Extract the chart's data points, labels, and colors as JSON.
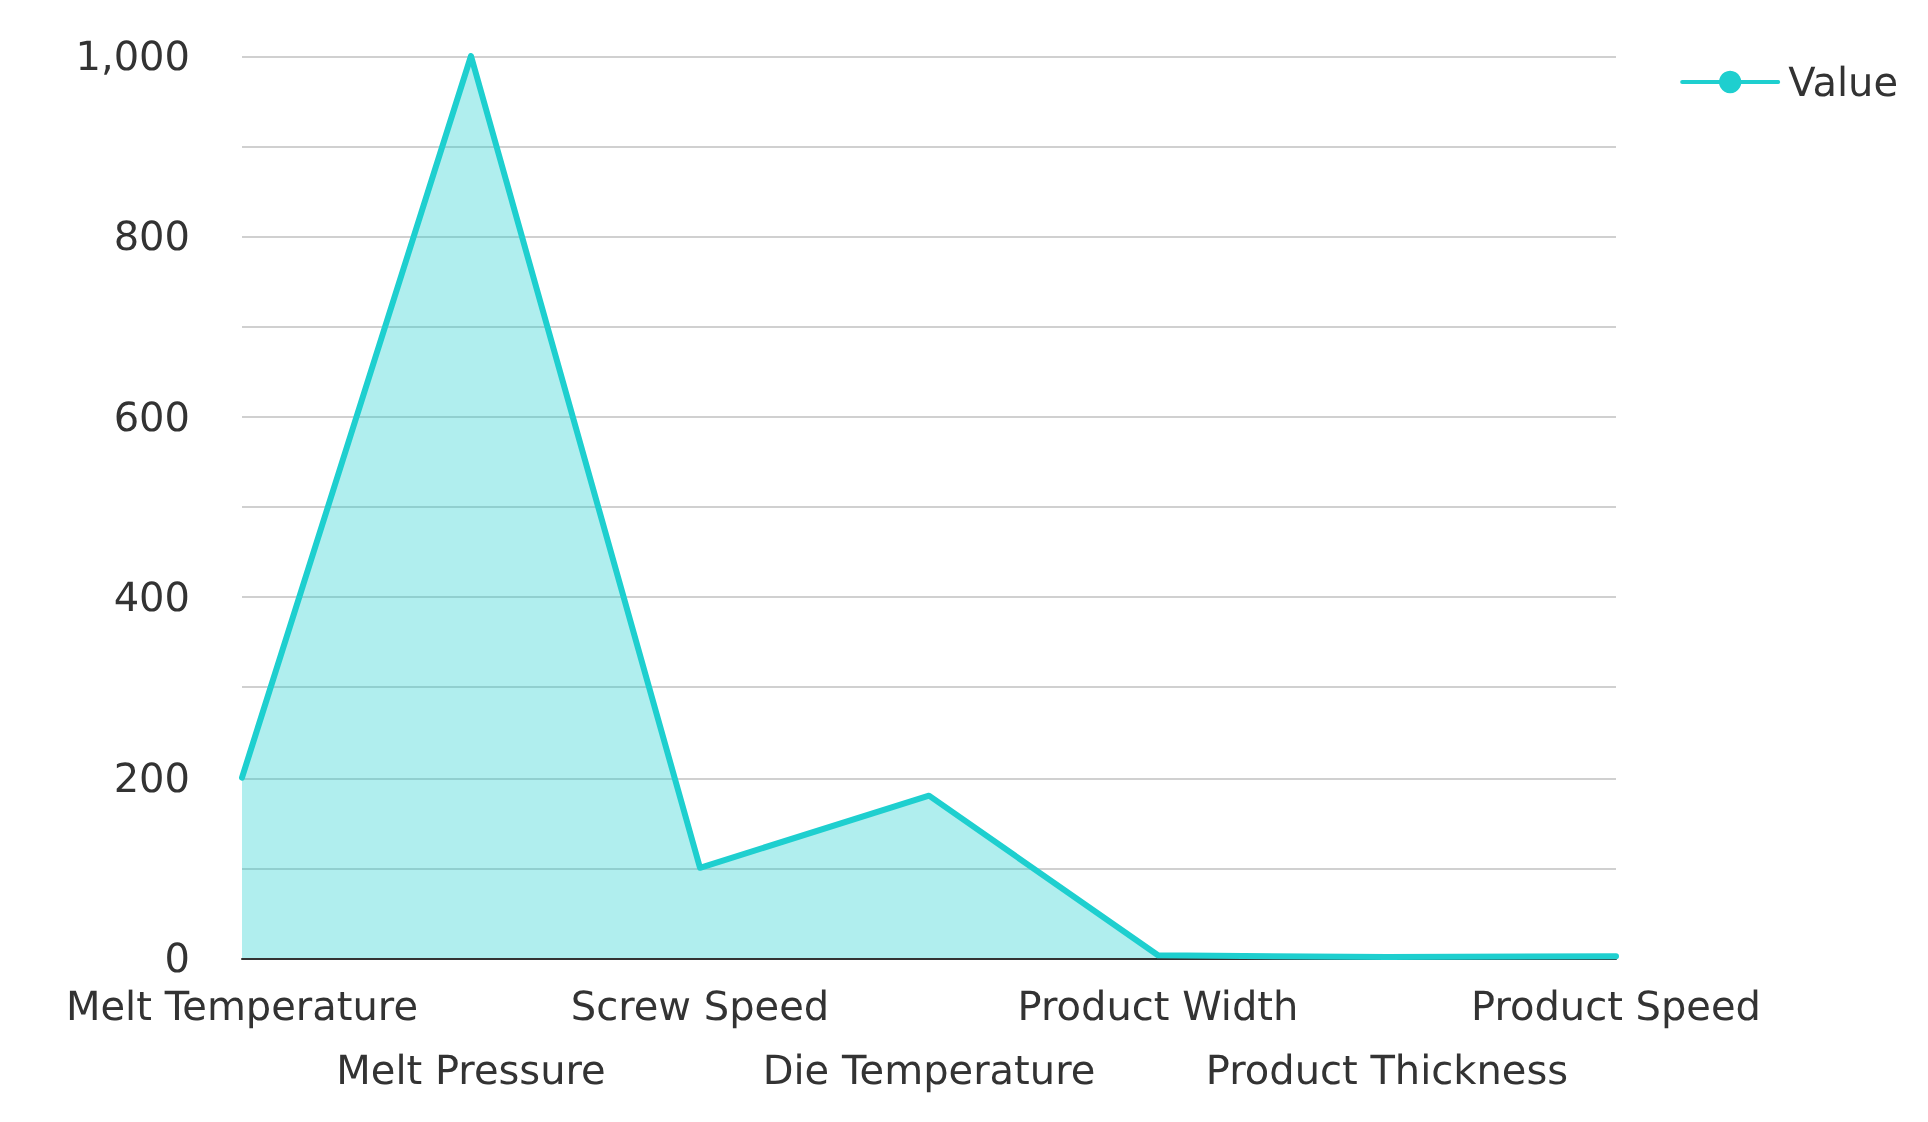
{
  "chart_data": {
    "type": "area",
    "categories": [
      "Melt Temperature",
      "Melt Pressure",
      "Screw Speed",
      "Die Temperature",
      "Product Width",
      "Product Thickness",
      "Product Speed"
    ],
    "series": [
      {
        "name": "Value",
        "color": "#1ecfcf",
        "values": [
          200,
          1000,
          100,
          180,
          3,
          1,
          2
        ]
      }
    ],
    "ylim": [
      0,
      1000
    ],
    "yticks": [
      0,
      {
        "value": 100,
        "label": null
      },
      200,
      {
        "value": 300,
        "label": null
      },
      400,
      {
        "value": 500,
        "label": null
      },
      600,
      {
        "value": 700,
        "label": null
      },
      800,
      {
        "value": 900,
        "label": null
      },
      {
        "value": 1000,
        "label": "1,000"
      }
    ],
    "grid": "y",
    "legend": "top right",
    "marker": "none",
    "line_style": "solid"
  }
}
